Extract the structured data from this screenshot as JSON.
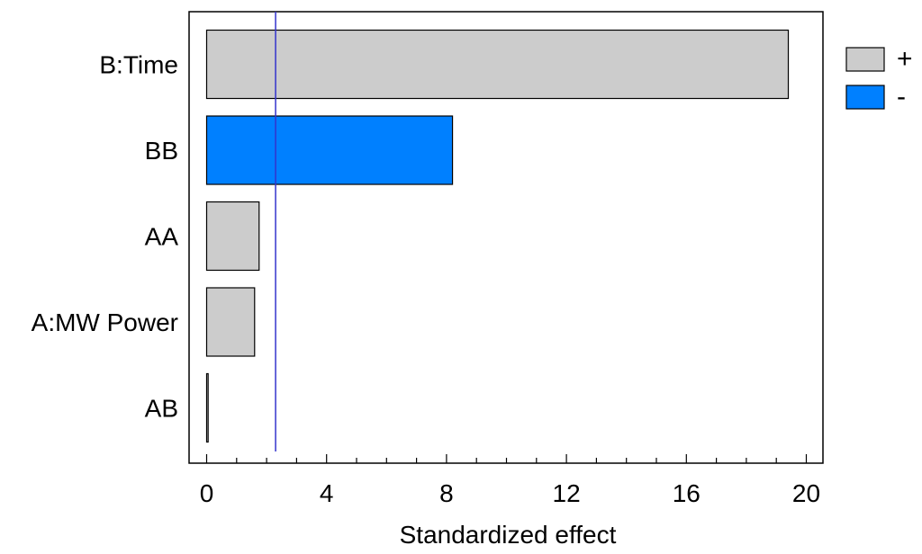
{
  "chart_data": {
    "type": "bar",
    "orientation": "horizontal",
    "title": "",
    "xlabel": "Standardized effect",
    "ylabel": "",
    "xlim": [
      0,
      20
    ],
    "xticks": [
      0,
      4,
      8,
      12,
      16,
      20
    ],
    "xtick_labels": [
      "0",
      "4",
      "8",
      "12",
      "16",
      "20"
    ],
    "minor_tick_step": 1,
    "grid": false,
    "categories": [
      "B:Time",
      "BB",
      "AA",
      "A:MW Power",
      "AB"
    ],
    "values": [
      19.4,
      8.2,
      1.75,
      1.6,
      0.05
    ],
    "signs": [
      "+",
      "-",
      "+",
      "+",
      "+"
    ],
    "reference_line": 2.3,
    "legend": {
      "position": "right-top",
      "entries": [
        {
          "label": "+",
          "color": "#cccccc"
        },
        {
          "label": "-",
          "color": "#0080ff"
        }
      ]
    },
    "colors": {
      "+": "#cccccc",
      "-": "#0080ff",
      "reference_line": "#3333cc"
    }
  }
}
